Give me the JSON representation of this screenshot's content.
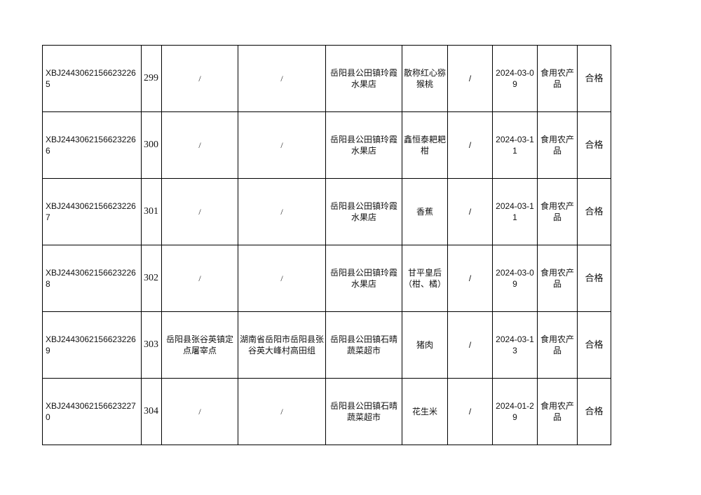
{
  "rows": [
    {
      "code": "XBJ24430621566232265",
      "no": "299",
      "producer": "/",
      "producer_addr": "/",
      "seller": "岳阳县公田镇玲霞水果店",
      "product": "散称红心猕猴桃",
      "spec": "/",
      "date": "2024-03-09",
      "category": "食用农产品",
      "result": "合格"
    },
    {
      "code": "XBJ24430621566232266",
      "no": "300",
      "producer": "/",
      "producer_addr": "/",
      "seller": "岳阳县公田镇玲霞水果店",
      "product": "鑫恒泰耙耙柑",
      "spec": "/",
      "date": "2024-03-11",
      "category": "食用农产品",
      "result": "合格"
    },
    {
      "code": "XBJ24430621566232267",
      "no": "301",
      "producer": "/",
      "producer_addr": "/",
      "seller": "岳阳县公田镇玲霞水果店",
      "product": "香蕉",
      "spec": "/",
      "date": "2024-03-11",
      "category": "食用农产品",
      "result": "合格"
    },
    {
      "code": "XBJ24430621566232268",
      "no": "302",
      "producer": "/",
      "producer_addr": "/",
      "seller": "岳阳县公田镇玲霞水果店",
      "product": "甘平皇后（柑、橘）",
      "spec": "/",
      "date": "2024-03-09",
      "category": "食用农产品",
      "result": "合格"
    },
    {
      "code": "XBJ24430621566232269",
      "no": "303",
      "producer": "岳阳县张谷英镇定点屠宰点",
      "producer_addr": "湖南省岳阳市岳阳县张谷英大峰村高田组",
      "seller": "岳阳县公田镇石晴蔬菜超市",
      "product": "猪肉",
      "spec": "/",
      "date": "2024-03-13",
      "category": "食用农产品",
      "result": "合格"
    },
    {
      "code": "XBJ24430621566232270",
      "no": "304",
      "producer": "/",
      "producer_addr": "/",
      "seller": "岳阳县公田镇石晴蔬菜超市",
      "product": "花生米",
      "spec": "/",
      "date": "2024-01-29",
      "category": "食用农产品",
      "result": "合格"
    }
  ]
}
